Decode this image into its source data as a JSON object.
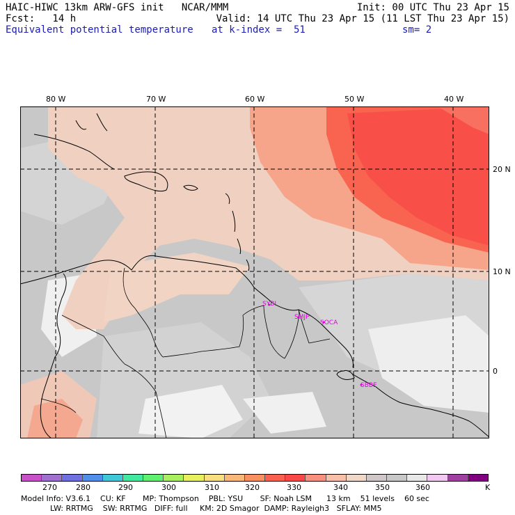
{
  "header": {
    "left1": "HAIC-HIWC 13km ARW-GFS init   NCAR/MMM",
    "left2": "Fcst:   14 h",
    "left3": "Equivalent potential temperature",
    "right1": "Init: 00 UTC Thu 23 Apr 15",
    "right2": "Valid: 14 UTC Thu 23 Apr 15 (11 LST Thu 23 Apr 15)",
    "mid3": "at k-index =  51",
    "right3": "sm= 2"
  },
  "map": {
    "longitudes": [
      "80 W",
      "70 W",
      "60 W",
      "50 W",
      "40 W"
    ],
    "latitudes": [
      "20 N",
      "10 N",
      "0"
    ],
    "stations": [
      "SYBI",
      "SMJP",
      "SOCA",
      "SBBE"
    ],
    "colors": {
      "gray_dark": "#c8c8c8",
      "gray_light": "#d4d4d4",
      "white": "#f4f4f4",
      "tan": "#f0d0c0",
      "salmon": "#f6a48a",
      "red_orange": "#f86450",
      "red": "#f85048"
    }
  },
  "colorbar": {
    "labels": [
      "270",
      "280",
      "290",
      "300",
      "310",
      "320",
      "330",
      "340",
      "350",
      "360",
      "K"
    ],
    "colors": [
      "#c850c8",
      "#a070d0",
      "#7070e0",
      "#5090e8",
      "#40c8d8",
      "#40e8a0",
      "#60f070",
      "#a8f060",
      "#e8f060",
      "#f8e080",
      "#f8b878",
      "#f89060",
      "#f86050",
      "#f84848",
      "#f89080",
      "#f8c0a8",
      "#f0d8c8",
      "#d0c8c8",
      "#c8c8c8",
      "#e8e8e8",
      "#f0c8f0",
      "#a040a0",
      "#800080"
    ]
  },
  "footer": {
    "line1": "Model Info: V3.6.1    CU: KF       MP: Thompson    PBL: YSU       SF: Noah LSM      13 km    51 levels    60 sec",
    "line2": "            LW: RRTMG    SW: RRTMG   DIFF: full     KM: 2D Smagor  DAMP: Rayleigh3   SFLAY: MM5"
  }
}
